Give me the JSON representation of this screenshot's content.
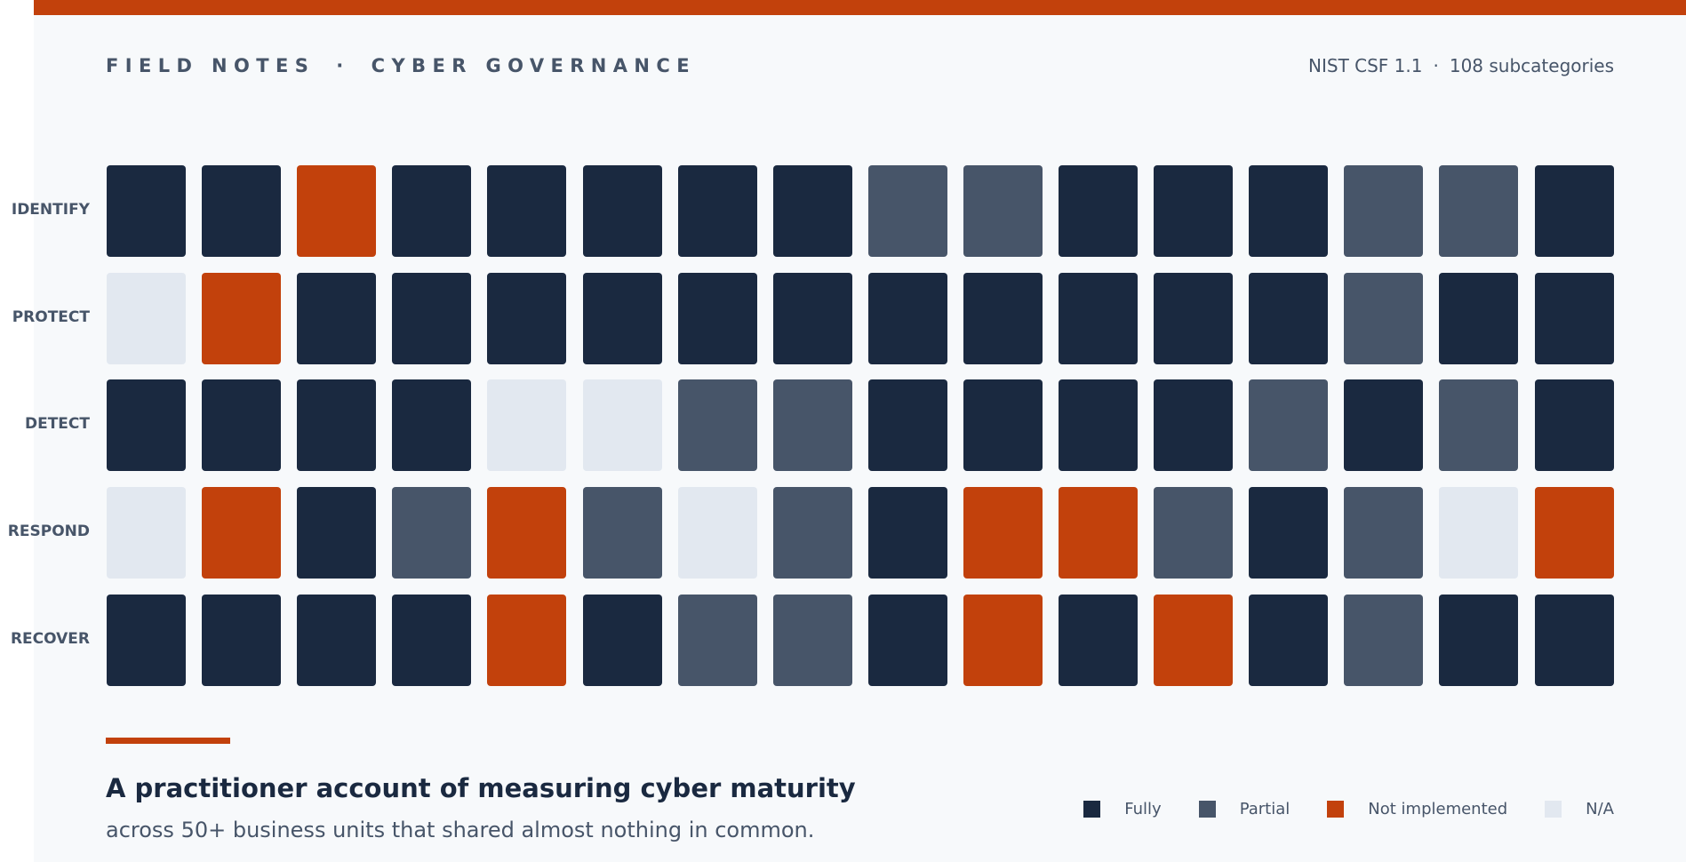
{
  "header": {
    "kicker": "FIELD NOTES · CYBER GOVERNANCE",
    "meta": "NIST CSF 1.1 · 108 subcategories"
  },
  "footer": {
    "headline": "A practitioner account of measuring cyber maturity",
    "subhead": "across 50+ business units that shared almost nothing in common."
  },
  "colors": {
    "Fully": "#1a2940",
    "Partial": "#475569",
    "Not implemented": "#c2410c",
    "N/A": "#e2e8f0",
    "accent": "#c2410c",
    "background": "#f7f9fb"
  },
  "chart_data": {
    "type": "heatmap",
    "rows": [
      "IDENTIFY",
      "PROTECT",
      "DETECT",
      "RESPOND",
      "RECOVER"
    ],
    "columns": 16,
    "levels": [
      "Fully",
      "Partial",
      "Not implemented",
      "N/A"
    ],
    "values": [
      [
        "Fully",
        "Fully",
        "Not implemented",
        "Fully",
        "Fully",
        "Fully",
        "Fully",
        "Fully",
        "Partial",
        "Partial",
        "Fully",
        "Fully",
        "Fully",
        "Partial",
        "Partial",
        "Fully"
      ],
      [
        "N/A",
        "Not implemented",
        "Fully",
        "Fully",
        "Fully",
        "Fully",
        "Fully",
        "Fully",
        "Fully",
        "Fully",
        "Fully",
        "Fully",
        "Fully",
        "Partial",
        "Fully",
        "Fully"
      ],
      [
        "Fully",
        "Fully",
        "Fully",
        "Fully",
        "N/A",
        "N/A",
        "Partial",
        "Partial",
        "Fully",
        "Fully",
        "Fully",
        "Fully",
        "Partial",
        "Fully",
        "Partial",
        "Fully"
      ],
      [
        "N/A",
        "Not implemented",
        "Fully",
        "Partial",
        "Not implemented",
        "Partial",
        "N/A",
        "Partial",
        "Fully",
        "Not implemented",
        "Not implemented",
        "Partial",
        "Fully",
        "Partial",
        "N/A",
        "Not implemented"
      ],
      [
        "Fully",
        "Fully",
        "Fully",
        "Fully",
        "Not implemented",
        "Fully",
        "Partial",
        "Partial",
        "Fully",
        "Not implemented",
        "Fully",
        "Not implemented",
        "Fully",
        "Partial",
        "Fully",
        "Fully"
      ]
    ],
    "legend": [
      {
        "label": "Fully"
      },
      {
        "label": "Partial"
      },
      {
        "label": "Not implemented"
      },
      {
        "label": "N/A"
      }
    ],
    "legend_position": "bottom-right"
  }
}
